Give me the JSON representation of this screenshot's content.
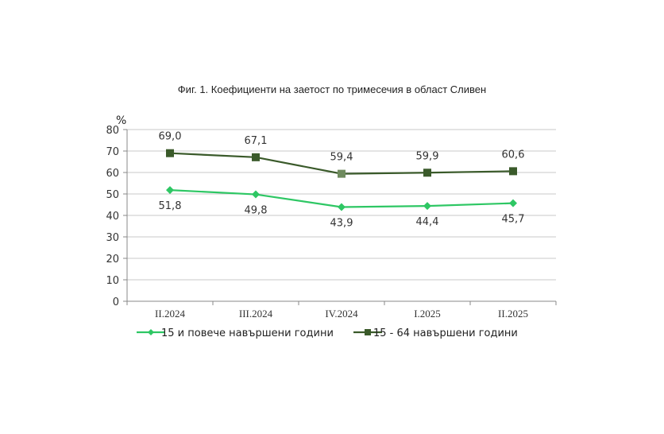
{
  "chart_data": {
    "type": "line",
    "title": "Фиг. 1. Коефициенти на заетост по тримесечия в област Сливен",
    "ylabel": "%",
    "xlabel": "",
    "ylim": [
      0,
      80
    ],
    "yticks": [
      0,
      10,
      20,
      30,
      40,
      50,
      60,
      70,
      80
    ],
    "grid": true,
    "legend_position": "bottom",
    "categories": [
      "II.2024",
      "III.2024",
      "IV.2024",
      "I.2025",
      "II.2025"
    ],
    "series": [
      {
        "name": "15 и повече навършени години",
        "values": [
          51.8,
          49.8,
          43.9,
          44.4,
          45.7
        ],
        "labels": [
          "51,8",
          "49,8",
          "43,9",
          "44,4",
          "45,7"
        ],
        "color": "#2ec764",
        "marker": "diamond"
      },
      {
        "name": "15 - 64 навършени години",
        "values": [
          69.0,
          67.1,
          59.4,
          59.9,
          60.6
        ],
        "labels": [
          "69,0",
          "67,1",
          "59,4",
          "59,9",
          "60,6"
        ],
        "color": "#3a5a2a",
        "marker": "square"
      }
    ]
  },
  "colors": {
    "grid": "#c8c8c8",
    "axis": "#888888"
  }
}
